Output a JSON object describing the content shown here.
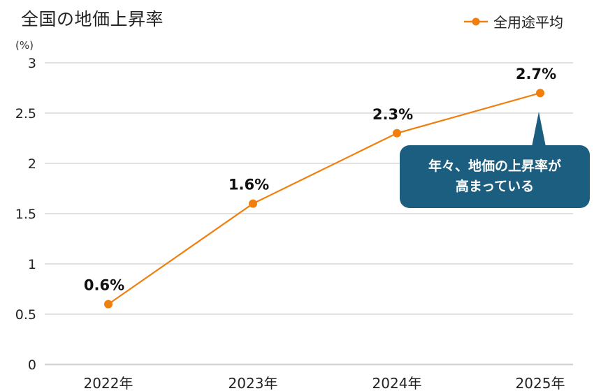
{
  "title": "全国の地価上昇率",
  "legend": {
    "label": "全用途平均",
    "color": "#f07f0d"
  },
  "unit_label": "(%)",
  "callout": {
    "line1": "年々、地価の上昇率が",
    "line2": "高まっている",
    "bg_color": "#1c5e80"
  },
  "colors": {
    "line": "#f07f0d",
    "grid": "#d0d0d0",
    "callout": "#1c5e80"
  },
  "y_ticks": [
    "3",
    "2.5",
    "2",
    "1.5",
    "1",
    "0.5",
    "0"
  ],
  "x_ticks": [
    "2022年",
    "2023年",
    "2024年",
    "2025年"
  ],
  "data_labels": [
    "0.6%",
    "1.6%",
    "2.3%",
    "2.7%"
  ],
  "chart_data": {
    "type": "line",
    "title": "全国の地価上昇率",
    "xlabel": "",
    "ylabel": "(%)",
    "categories": [
      "2022年",
      "2023年",
      "2024年",
      "2025年"
    ],
    "series": [
      {
        "name": "全用途平均",
        "values": [
          0.6,
          1.6,
          2.3,
          2.7
        ],
        "color": "#f07f0d"
      }
    ],
    "ylim": [
      0,
      3
    ],
    "yticks": [
      0,
      0.5,
      1,
      1.5,
      2,
      2.5,
      3
    ],
    "grid": true,
    "legend_position": "top-right",
    "data_labels": [
      "0.6%",
      "1.6%",
      "2.3%",
      "2.7%"
    ],
    "annotations": [
      {
        "text": "年々、地価の上昇率が高まっている",
        "target": "2025年",
        "style": "callout"
      }
    ]
  }
}
